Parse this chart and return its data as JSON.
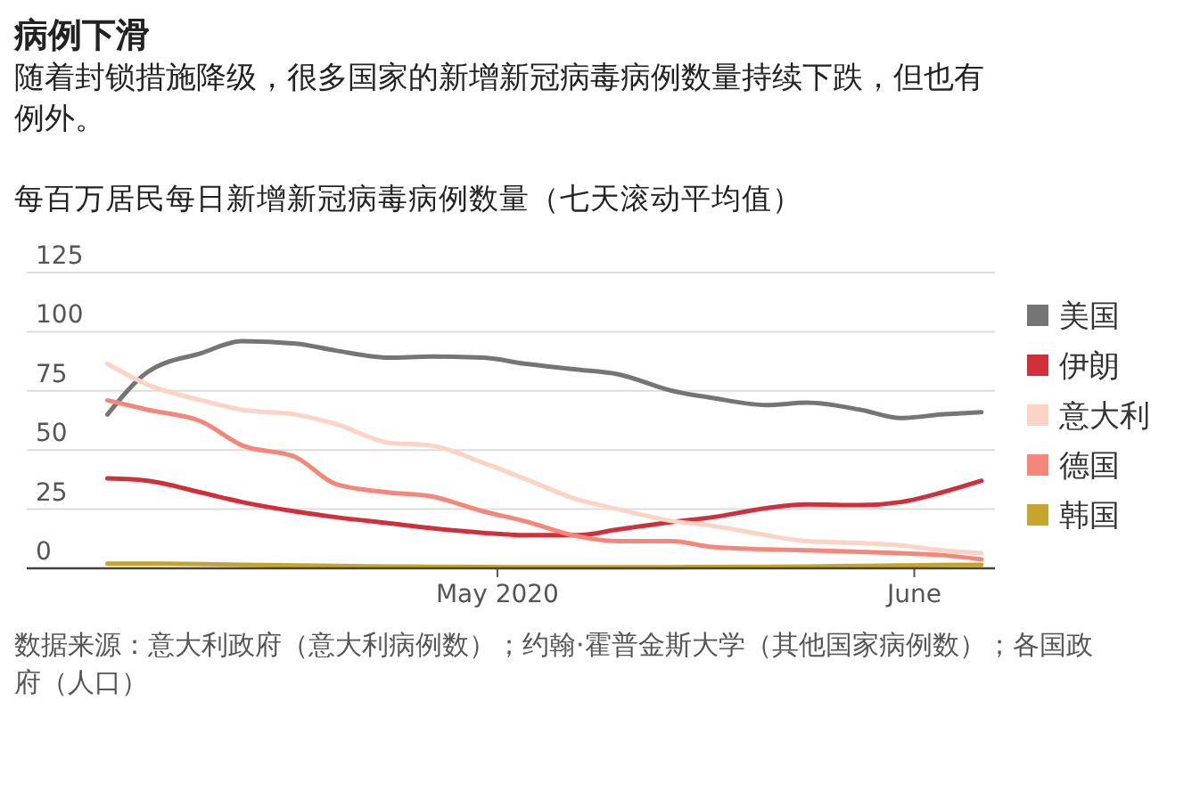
{
  "chart_data": {
    "type": "line",
    "title": "病例下滑",
    "subtitle": "随着封锁措施降级，很多国家的新增新冠病毒病例数量持续下跌，但也有例外。",
    "ylabel": "每百万居民每日新增新冠病毒病例数量（七天滚动平均值）",
    "x": [
      "2020-04-02",
      "2020-04-05",
      "2020-04-09",
      "2020-04-12",
      "2020-04-16",
      "2020-04-19",
      "2020-04-23",
      "2020-04-26",
      "2020-04-30",
      "2020-05-03",
      "2020-05-07",
      "2020-05-10",
      "2020-05-14",
      "2020-05-17",
      "2020-05-21",
      "2020-05-24",
      "2020-05-28",
      "2020-05-31",
      "2020-06-03",
      "2020-06-06"
    ],
    "series": [
      {
        "name": "美国",
        "color": "#757575",
        "values": [
          65,
          83,
          91,
          96,
          95,
          92,
          89,
          89.5,
          89,
          86.5,
          84,
          82,
          75,
          72,
          69,
          70,
          67,
          63.5,
          65,
          66
        ]
      },
      {
        "name": "伊朗",
        "color": "#d1303a",
        "values": [
          38,
          37,
          32,
          28,
          24,
          21.6,
          19,
          17,
          15,
          14,
          14,
          16.5,
          19.6,
          21.6,
          25.4,
          27,
          26.7,
          28,
          32,
          37
        ]
      },
      {
        "name": "意大利",
        "color": "#fcd3c5",
        "values": [
          86.5,
          77.6,
          71,
          67,
          65,
          61,
          53,
          52,
          44.5,
          38,
          29,
          25,
          20,
          18,
          14,
          11.5,
          10.7,
          9.7,
          7.6,
          6.4
        ]
      },
      {
        "name": "德国",
        "color": "#f4877a",
        "values": [
          71,
          67,
          62,
          52,
          47,
          35.6,
          32,
          30.5,
          24,
          20,
          13.5,
          11.5,
          11.5,
          9,
          8,
          7.6,
          7,
          6.4,
          5.6,
          3.8
        ]
      },
      {
        "name": "韩国",
        "color": "#c5a52c",
        "values": [
          2,
          2,
          1.8,
          1.5,
          1.2,
          1,
          0.8,
          0.7,
          0.6,
          0.5,
          0.5,
          0.5,
          0.5,
          0.6,
          0.7,
          0.8,
          1,
          1.2,
          1.4,
          1.5
        ]
      }
    ],
    "xlim": [
      "2020-03-27",
      "2020-06-07"
    ],
    "xticks": [
      {
        "value": "2020-05-01",
        "label": "May 2020"
      },
      {
        "value": "2020-06-01",
        "label": "June"
      }
    ],
    "ylim": [
      0,
      125
    ],
    "yticks": [
      0,
      25,
      50,
      75,
      100,
      125
    ],
    "grid": "y",
    "legend": "right",
    "marker": "none",
    "line_style": "solid",
    "annotations": [
      "数据来源：意大利政府（意大利病例数）；约翰·霍普金斯大学（其他国家病例数）；各国政府（人口）"
    ]
  }
}
